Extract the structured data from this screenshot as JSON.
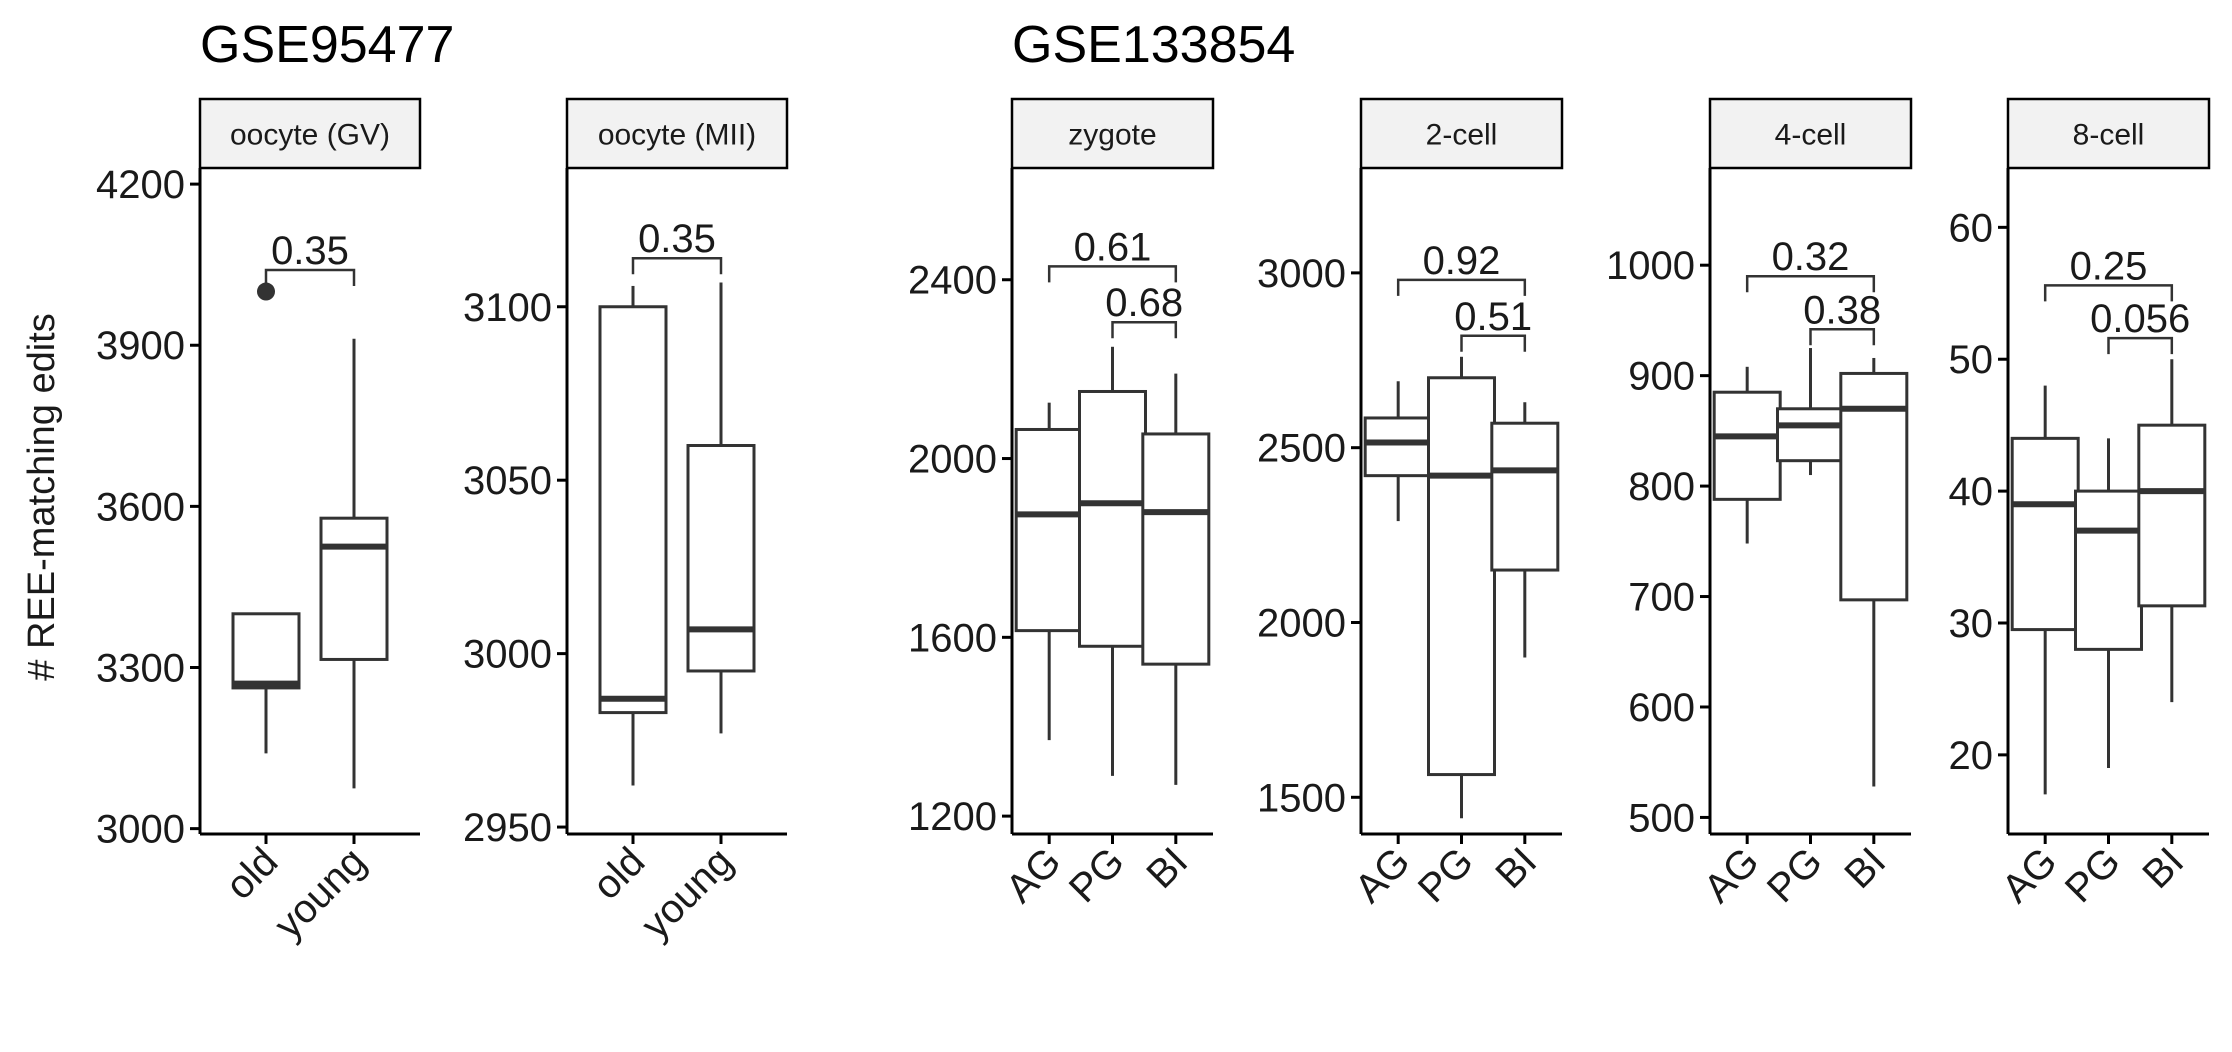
{
  "colors": {
    "line": "#333333",
    "strip_fill": "#f2f2f2",
    "axis": "#000000"
  },
  "ylabel": "# REE-matching edits",
  "group_titles": [
    {
      "text": "GSE95477",
      "panel": 0
    },
    {
      "text": "GSE133854",
      "panel": 2
    }
  ],
  "chart_data": [
    {
      "type": "box",
      "facet": "oocyte (GV)",
      "group": "GSE95477",
      "ylim": [
        2990,
        4230
      ],
      "yticks": [
        3000,
        3300,
        3600,
        3900,
        4200
      ],
      "categories": [
        "old",
        "young"
      ],
      "boxes": [
        {
          "category": "old",
          "min": 3140,
          "q1": 3262,
          "median": 3270,
          "q3": 3400,
          "max": 3400,
          "outliers": [
            4000
          ]
        },
        {
          "category": "young",
          "min": 3075,
          "q1": 3315,
          "median": 3525,
          "q3": 3578,
          "max": 3912,
          "outliers": []
        }
      ],
      "comparisons": [
        {
          "from": "old",
          "to": "young",
          "label": "0.35",
          "y": 4040
        }
      ]
    },
    {
      "type": "box",
      "facet": "oocyte (MII)",
      "group": "GSE95477",
      "ylim": [
        2948,
        3140
      ],
      "yticks": [
        2950,
        3000,
        3050,
        3100
      ],
      "categories": [
        "old",
        "young"
      ],
      "boxes": [
        {
          "category": "old",
          "min": 2962,
          "q1": 2983,
          "median": 2987,
          "q3": 3100,
          "max": 3106,
          "outliers": []
        },
        {
          "category": "young",
          "min": 2977,
          "q1": 2995,
          "median": 3007,
          "q3": 3060,
          "max": 3107,
          "outliers": []
        }
      ],
      "comparisons": [
        {
          "from": "old",
          "to": "young",
          "label": "0.35",
          "y": 3114
        }
      ]
    },
    {
      "type": "box",
      "facet": "zygote",
      "group": "GSE133854",
      "ylim": [
        1160,
        2650
      ],
      "yticks": [
        1200,
        1600,
        2000,
        2400
      ],
      "categories": [
        "AG",
        "PG",
        "BI"
      ],
      "boxes": [
        {
          "category": "AG",
          "min": 1370,
          "q1": 1615,
          "median": 1875,
          "q3": 2065,
          "max": 2125,
          "outliers": []
        },
        {
          "category": "PG",
          "min": 1290,
          "q1": 1580,
          "median": 1900,
          "q3": 2150,
          "max": 2250,
          "outliers": []
        },
        {
          "category": "BI",
          "min": 1270,
          "q1": 1540,
          "median": 1880,
          "q3": 2055,
          "max": 2190,
          "outliers": []
        }
      ],
      "comparisons": [
        {
          "from": "AG",
          "to": "BI",
          "label": "0.61",
          "y": 2430
        },
        {
          "from": "PG",
          "to": "BI",
          "label": "0.68",
          "y": 2305
        }
      ]
    },
    {
      "type": "box",
      "facet": "2-cell",
      "group": "GSE133854",
      "ylim": [
        1395,
        3300
      ],
      "yticks": [
        1500,
        2000,
        2500,
        3000
      ],
      "categories": [
        "AG",
        "PG",
        "BI"
      ],
      "boxes": [
        {
          "category": "AG",
          "min": 2290,
          "q1": 2420,
          "median": 2515,
          "q3": 2585,
          "max": 2690,
          "outliers": []
        },
        {
          "category": "PG",
          "min": 1440,
          "q1": 1565,
          "median": 2420,
          "q3": 2700,
          "max": 2760,
          "outliers": []
        },
        {
          "category": "BI",
          "min": 1900,
          "q1": 2150,
          "median": 2435,
          "q3": 2570,
          "max": 2630,
          "outliers": []
        }
      ],
      "comparisons": [
        {
          "from": "AG",
          "to": "BI",
          "label": "0.92",
          "y": 2980
        },
        {
          "from": "PG",
          "to": "BI",
          "label": "0.51",
          "y": 2820
        }
      ]
    },
    {
      "type": "box",
      "facet": "4-cell",
      "group": "GSE133854",
      "ylim": [
        485,
        1088
      ],
      "yticks": [
        500,
        600,
        700,
        800,
        900,
        1000
      ],
      "categories": [
        "AG",
        "PG",
        "BI"
      ],
      "boxes": [
        {
          "category": "AG",
          "min": 748,
          "q1": 788,
          "median": 845,
          "q3": 885,
          "max": 908,
          "outliers": []
        },
        {
          "category": "PG",
          "min": 810,
          "q1": 823,
          "median": 855,
          "q3": 870,
          "max": 925,
          "outliers": []
        },
        {
          "category": "BI",
          "min": 528,
          "q1": 697,
          "median": 870,
          "q3": 902,
          "max": 916,
          "outliers": []
        }
      ],
      "comparisons": [
        {
          "from": "AG",
          "to": "BI",
          "label": "0.32",
          "y": 990
        },
        {
          "from": "PG",
          "to": "BI",
          "label": "0.38",
          "y": 942
        }
      ]
    },
    {
      "type": "box",
      "facet": "8-cell",
      "group": "GSE133854",
      "ylim": [
        14,
        64.5
      ],
      "yticks": [
        20,
        30,
        40,
        50,
        60
      ],
      "categories": [
        "AG",
        "PG",
        "BI"
      ],
      "boxes": [
        {
          "category": "AG",
          "min": 17,
          "q1": 29.5,
          "median": 39,
          "q3": 44,
          "max": 48,
          "outliers": []
        },
        {
          "category": "PG",
          "min": 19,
          "q1": 28,
          "median": 37,
          "q3": 40,
          "max": 44,
          "outliers": []
        },
        {
          "category": "BI",
          "min": 24,
          "q1": 31.3,
          "median": 40,
          "q3": 45,
          "max": 50,
          "outliers": []
        }
      ],
      "comparisons": [
        {
          "from": "AG",
          "to": "BI",
          "label": "0.25",
          "y": 55.6
        },
        {
          "from": "PG",
          "to": "BI",
          "label": "0.056",
          "y": 51.6
        }
      ]
    }
  ]
}
